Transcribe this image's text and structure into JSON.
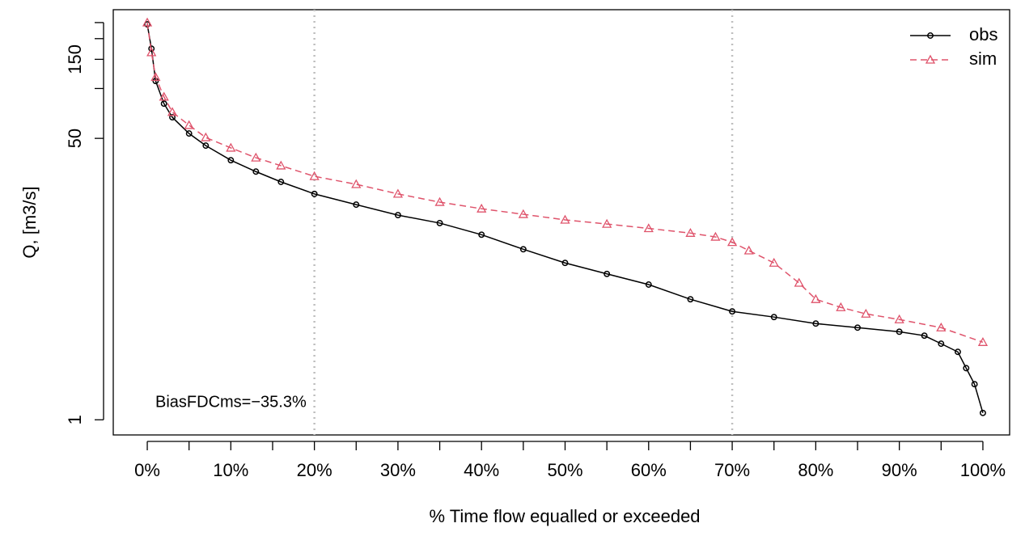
{
  "chart_data": {
    "type": "line",
    "y_label": "Q, [m3/s]",
    "x_label": "% Time flow equalled or exceeded",
    "annotation": "BiasFDCms=−35.3%",
    "log_y": true,
    "xlim": [
      -4.07,
      103.2
    ],
    "ylim": [
      0.81,
      299
    ],
    "xticks": [
      {
        "value": 0,
        "label": "0%"
      },
      {
        "value": 10,
        "label": "10%"
      },
      {
        "value": 20,
        "label": "20%"
      },
      {
        "value": 30,
        "label": "30%"
      },
      {
        "value": 40,
        "label": "40%"
      },
      {
        "value": 50,
        "label": "50%"
      },
      {
        "value": 60,
        "label": "60%"
      },
      {
        "value": 70,
        "label": "70%"
      },
      {
        "value": 80,
        "label": "80%"
      },
      {
        "value": 90,
        "label": "90%"
      },
      {
        "value": 100,
        "label": "100%"
      }
    ],
    "xminor_ticks": [
      5,
      15,
      25,
      35,
      45,
      55,
      65,
      75,
      85,
      95
    ],
    "yticks": [
      1,
      50,
      150
    ],
    "yminor_ticks": [
      100,
      200,
      250
    ],
    "vlines": [
      20,
      70
    ],
    "legend": "top-right",
    "series": [
      {
        "name": "obs",
        "color": "#000000",
        "marker": "circle",
        "dash": false,
        "x": [
          0,
          0.5,
          1,
          2,
          3,
          5,
          7,
          10,
          13,
          16,
          20,
          25,
          30,
          35,
          40,
          45,
          50,
          55,
          60,
          65,
          70,
          75,
          80,
          85,
          90,
          93,
          95,
          97,
          98,
          99,
          100
        ],
        "values": [
          244,
          174,
          111,
          81,
          67,
          53.5,
          45.2,
          36.9,
          31.5,
          27.3,
          23.1,
          19.9,
          17.2,
          15.4,
          13.1,
          10.7,
          8.85,
          7.6,
          6.55,
          5.34,
          4.51,
          4.17,
          3.81,
          3.6,
          3.4,
          3.22,
          2.88,
          2.57,
          2.05,
          1.64,
          1.1
        ]
      },
      {
        "name": "sim",
        "color": "#DF536B",
        "marker": "triangle",
        "dash": true,
        "x": [
          0,
          0.5,
          1,
          2,
          3,
          5,
          7,
          10,
          13,
          16,
          20,
          25,
          30,
          35,
          40,
          45,
          50,
          55,
          60,
          65,
          68,
          70,
          72,
          75,
          78,
          80,
          83,
          86,
          90,
          95,
          100
        ],
        "values": [
          250,
          165,
          117,
          89,
          72,
          60,
          50.6,
          43.8,
          38.2,
          34.2,
          29.5,
          26.4,
          23.1,
          20.6,
          18.8,
          17.4,
          16.1,
          15.2,
          14.3,
          13.4,
          12.7,
          11.8,
          10.5,
          8.85,
          6.7,
          5.34,
          4.77,
          4.36,
          4.03,
          3.6,
          2.94
        ]
      }
    ]
  }
}
